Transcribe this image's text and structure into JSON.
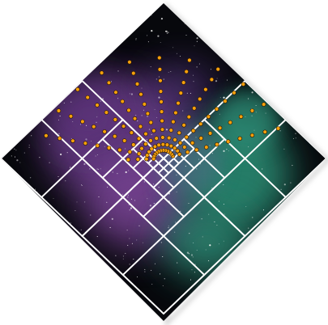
{
  "artwork": {
    "subject": "nebula-starfield-diamond",
    "colors": {
      "space": "#07080c",
      "nebula_purple": "#6e3f8e",
      "nebula_teal": "#2c8a72",
      "grid_lines": "#ffffff",
      "dots": "#f5a00c",
      "dot_outline": "#2a1500",
      "edge_shadow": "#bdbdbd",
      "stars": "#ffffff"
    },
    "dots_count": 125,
    "quadtree_depth_max": 5
  }
}
